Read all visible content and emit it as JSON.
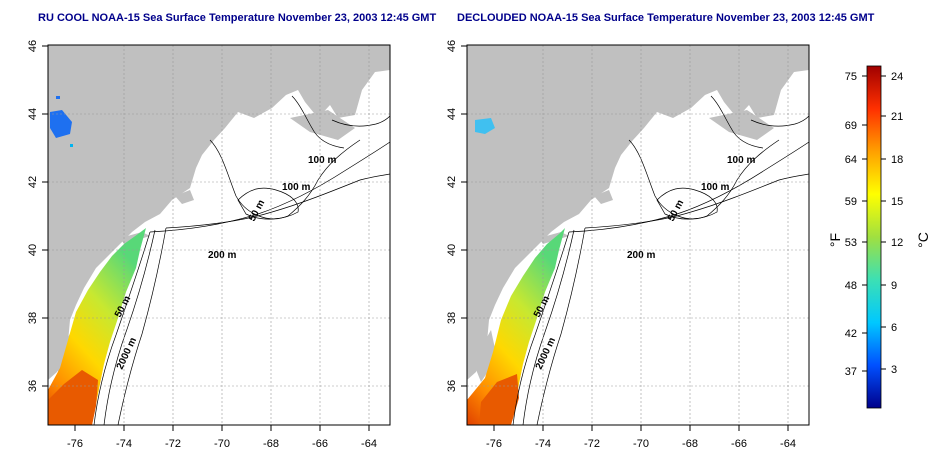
{
  "panels": [
    {
      "title": "RU COOL NOAA-15 Sea Surface Temperature November 23, 2003 12:45 GMT"
    },
    {
      "title": "DECLOUDED NOAA-15 Sea Surface Temperature November 23, 2003 12:45 GMT"
    }
  ],
  "axes": {
    "lon_ticks": [
      "-76",
      "-74",
      "-72",
      "-70",
      "-68",
      "-66",
      "-64"
    ],
    "lat_ticks": [
      "46",
      "44",
      "42",
      "40",
      "38",
      "36"
    ]
  },
  "contours": {
    "c100a": "100 m",
    "c100b": "100 m",
    "c50a": "50 m",
    "c200": "200 m",
    "c50b": "50 m",
    "c2000": "2000 m"
  },
  "colorbar": {
    "unit_f": "°F",
    "unit_c": "°C",
    "f_ticks": [
      "75",
      "69",
      "64",
      "59",
      "53",
      "48",
      "42",
      "37"
    ],
    "c_ticks": [
      "24",
      "21",
      "18",
      "15",
      "12",
      "9",
      "6",
      "3"
    ],
    "colors": [
      "#00008b",
      "#0050ff",
      "#00c8ff",
      "#3ce0b4",
      "#a0e040",
      "#ffff00",
      "#ffa000",
      "#ff3000",
      "#a00000"
    ]
  }
}
